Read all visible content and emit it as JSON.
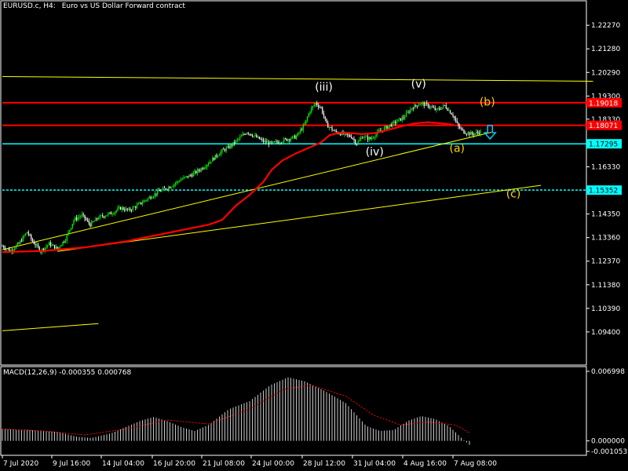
{
  "header": {
    "symbol": "EURUSD.c, H4:",
    "description": "Euro vs US Dollar Forward contract"
  },
  "macd": {
    "label": "MACD(12,26,9) -0.000355 0.000768"
  },
  "colors": {
    "background": "#000000",
    "bull_candle": "#00ff00",
    "bear_candle": "#ffffff",
    "moving_average": "#ff0000",
    "resistance_line": "#ff0000",
    "support_line": "#00ffff",
    "trend_line": "#ffff00",
    "wave_label_white": "#ffffff",
    "wave_label_yellow": "#ffd200",
    "arrow": "#00c8ff"
  },
  "chart_data": [
    {
      "type": "candlestick",
      "title": "EURUSD.c, H4: Euro vs US Dollar Forward contract",
      "price_ticks": [
        "1.22270",
        "1.21280",
        "1.20290",
        "1.19300",
        "1.18330",
        "1.17340",
        "1.16330",
        "1.15340",
        "1.14350",
        "1.13360",
        "1.12370",
        "1.11380",
        "1.10390",
        "1.09400"
      ],
      "time_labels": [
        "7 Jul 2020",
        "9 Jul 16:00",
        "14 Jul 04:00",
        "16 Jul 20:00",
        "21 Jul 08:00",
        "24 Jul 00:00",
        "28 Jul 12:00",
        "31 Jul 04:00",
        "4 Aug 16:00",
        "7 Aug 08:00"
      ],
      "ylim": [
        1.09,
        1.2277
      ],
      "close_path": [
        [
          0,
          1.13
        ],
        [
          6,
          1.128
        ],
        [
          12,
          1.131
        ],
        [
          18,
          1.136
        ],
        [
          22,
          1.132
        ],
        [
          28,
          1.128
        ],
        [
          34,
          1.131
        ],
        [
          40,
          1.129
        ],
        [
          46,
          1.133
        ],
        [
          52,
          1.141
        ],
        [
          58,
          1.143
        ],
        [
          64,
          1.139
        ],
        [
          70,
          1.142
        ],
        [
          75,
          1.143
        ],
        [
          80,
          1.144
        ],
        [
          86,
          1.146
        ],
        [
          92,
          1.145
        ],
        [
          98,
          1.147
        ],
        [
          106,
          1.15
        ],
        [
          114,
          1.153
        ],
        [
          122,
          1.155
        ],
        [
          130,
          1.158
        ],
        [
          138,
          1.16
        ],
        [
          146,
          1.163
        ],
        [
          154,
          1.167
        ],
        [
          160,
          1.17
        ],
        [
          166,
          1.172
        ],
        [
          172,
          1.175
        ],
        [
          178,
          1.178
        ],
        [
          184,
          1.176
        ],
        [
          190,
          1.174
        ],
        [
          196,
          1.173
        ],
        [
          202,
          1.174
        ],
        [
          208,
          1.175
        ],
        [
          214,
          1.176
        ],
        [
          220,
          1.181
        ],
        [
          224,
          1.187
        ],
        [
          228,
          1.19
        ],
        [
          232,
          1.188
        ],
        [
          236,
          1.181
        ],
        [
          242,
          1.178
        ],
        [
          248,
          1.177
        ],
        [
          254,
          1.176
        ],
        [
          258,
          1.173
        ],
        [
          262,
          1.176
        ],
        [
          268,
          1.175
        ],
        [
          274,
          1.178
        ],
        [
          280,
          1.18
        ],
        [
          286,
          1.182
        ],
        [
          292,
          1.184
        ],
        [
          298,
          1.188
        ],
        [
          304,
          1.19
        ],
        [
          310,
          1.189
        ],
        [
          316,
          1.187
        ],
        [
          322,
          1.189
        ],
        [
          328,
          1.185
        ],
        [
          332,
          1.18
        ],
        [
          336,
          1.178
        ],
        [
          342,
          1.177
        ],
        [
          348,
          1.178
        ]
      ],
      "moving_average": [
        [
          0,
          1.1275
        ],
        [
          30,
          1.128
        ],
        [
          60,
          1.1295
        ],
        [
          90,
          1.132
        ],
        [
          120,
          1.1355
        ],
        [
          150,
          1.139
        ],
        [
          160,
          1.141
        ],
        [
          170,
          1.147
        ],
        [
          180,
          1.1515
        ],
        [
          190,
          1.157
        ],
        [
          196,
          1.162
        ],
        [
          204,
          1.166
        ],
        [
          214,
          1.169
        ],
        [
          224,
          1.1715
        ],
        [
          232,
          1.1735
        ],
        [
          238,
          1.1765
        ],
        [
          244,
          1.1775
        ],
        [
          252,
          1.1775
        ],
        [
          262,
          1.177
        ],
        [
          272,
          1.1775
        ],
        [
          282,
          1.179
        ],
        [
          292,
          1.1805
        ],
        [
          300,
          1.1815
        ],
        [
          310,
          1.182
        ],
        [
          320,
          1.1815
        ],
        [
          328,
          1.181
        ]
      ],
      "horizontal_levels": [
        {
          "price": "1.19018",
          "value": 1.19018,
          "kind": "resistance"
        },
        {
          "price": "1.18071",
          "value": 1.18071,
          "kind": "resistance"
        },
        {
          "price": "1.17295",
          "value": 1.17295,
          "kind": "support"
        },
        {
          "price": "1.15352",
          "value": 1.15352,
          "kind": "support"
        }
      ],
      "trend_lines": [
        {
          "from": [
            0,
            1.1285
          ],
          "to": [
            356,
            1.1778
          ]
        },
        {
          "from": [
            40,
            1.1278
          ],
          "to": [
            392,
            1.1555
          ]
        },
        {
          "from": [
            0,
            1.2012
          ],
          "to": [
            430,
            1.1992
          ]
        },
        {
          "from": [
            0,
            1.0945
          ],
          "to": [
            70,
            1.0975
          ]
        }
      ],
      "wave_labels": [
        {
          "text": "(iii)",
          "at": [
            234,
            1.1953
          ],
          "tone": "white"
        },
        {
          "text": "(iv)",
          "at": [
            271,
            1.168
          ],
          "tone": "white"
        },
        {
          "text": "(v)",
          "at": [
            303,
            1.1965
          ],
          "tone": "white"
        },
        {
          "text": "(b)",
          "at": [
            353,
            1.189
          ],
          "tone": "yellow"
        },
        {
          "text": "(a)",
          "at": [
            331,
            1.1696
          ],
          "tone": "yellow"
        },
        {
          "text": "(c)",
          "at": [
            372,
            1.1505
          ],
          "tone": "yellow"
        }
      ],
      "arrow_at": [
        355,
        1.176
      ]
    },
    {
      "type": "bar",
      "title": "MACD(12,26,9) -0.000355 0.000768",
      "price_ticks": [
        "0.006998",
        "0.000000",
        "-0.001053"
      ],
      "ylim": [
        -0.001053,
        0.006998
      ],
      "histogram": [
        [
          0,
          0.0012
        ],
        [
          20,
          0.0011
        ],
        [
          40,
          0.0009
        ],
        [
          55,
          0.0004
        ],
        [
          65,
          0.0003
        ],
        [
          80,
          0.0008
        ],
        [
          100,
          0.002
        ],
        [
          110,
          0.0024
        ],
        [
          120,
          0.002
        ],
        [
          130,
          0.0014
        ],
        [
          140,
          0.001
        ],
        [
          150,
          0.0016
        ],
        [
          165,
          0.0032
        ],
        [
          180,
          0.004
        ],
        [
          195,
          0.0056
        ],
        [
          208,
          0.0064
        ],
        [
          220,
          0.006
        ],
        [
          235,
          0.005
        ],
        [
          250,
          0.0038
        ],
        [
          265,
          0.0015
        ],
        [
          275,
          0.001
        ],
        [
          285,
          0.0011
        ],
        [
          295,
          0.002
        ],
        [
          305,
          0.0025
        ],
        [
          315,
          0.0022
        ],
        [
          325,
          0.0015
        ],
        [
          335,
          0.0002
        ],
        [
          340,
          -0.0004
        ]
      ],
      "signal": [
        [
          0,
          0.0012
        ],
        [
          30,
          0.001
        ],
        [
          60,
          0.0006
        ],
        [
          90,
          0.0012
        ],
        [
          120,
          0.0021
        ],
        [
          150,
          0.0017
        ],
        [
          180,
          0.0032
        ],
        [
          205,
          0.0052
        ],
        [
          225,
          0.0056
        ],
        [
          250,
          0.0045
        ],
        [
          270,
          0.0026
        ],
        [
          290,
          0.0016
        ],
        [
          310,
          0.0019
        ],
        [
          330,
          0.0016
        ],
        [
          340,
          0.0008
        ]
      ]
    }
  ]
}
